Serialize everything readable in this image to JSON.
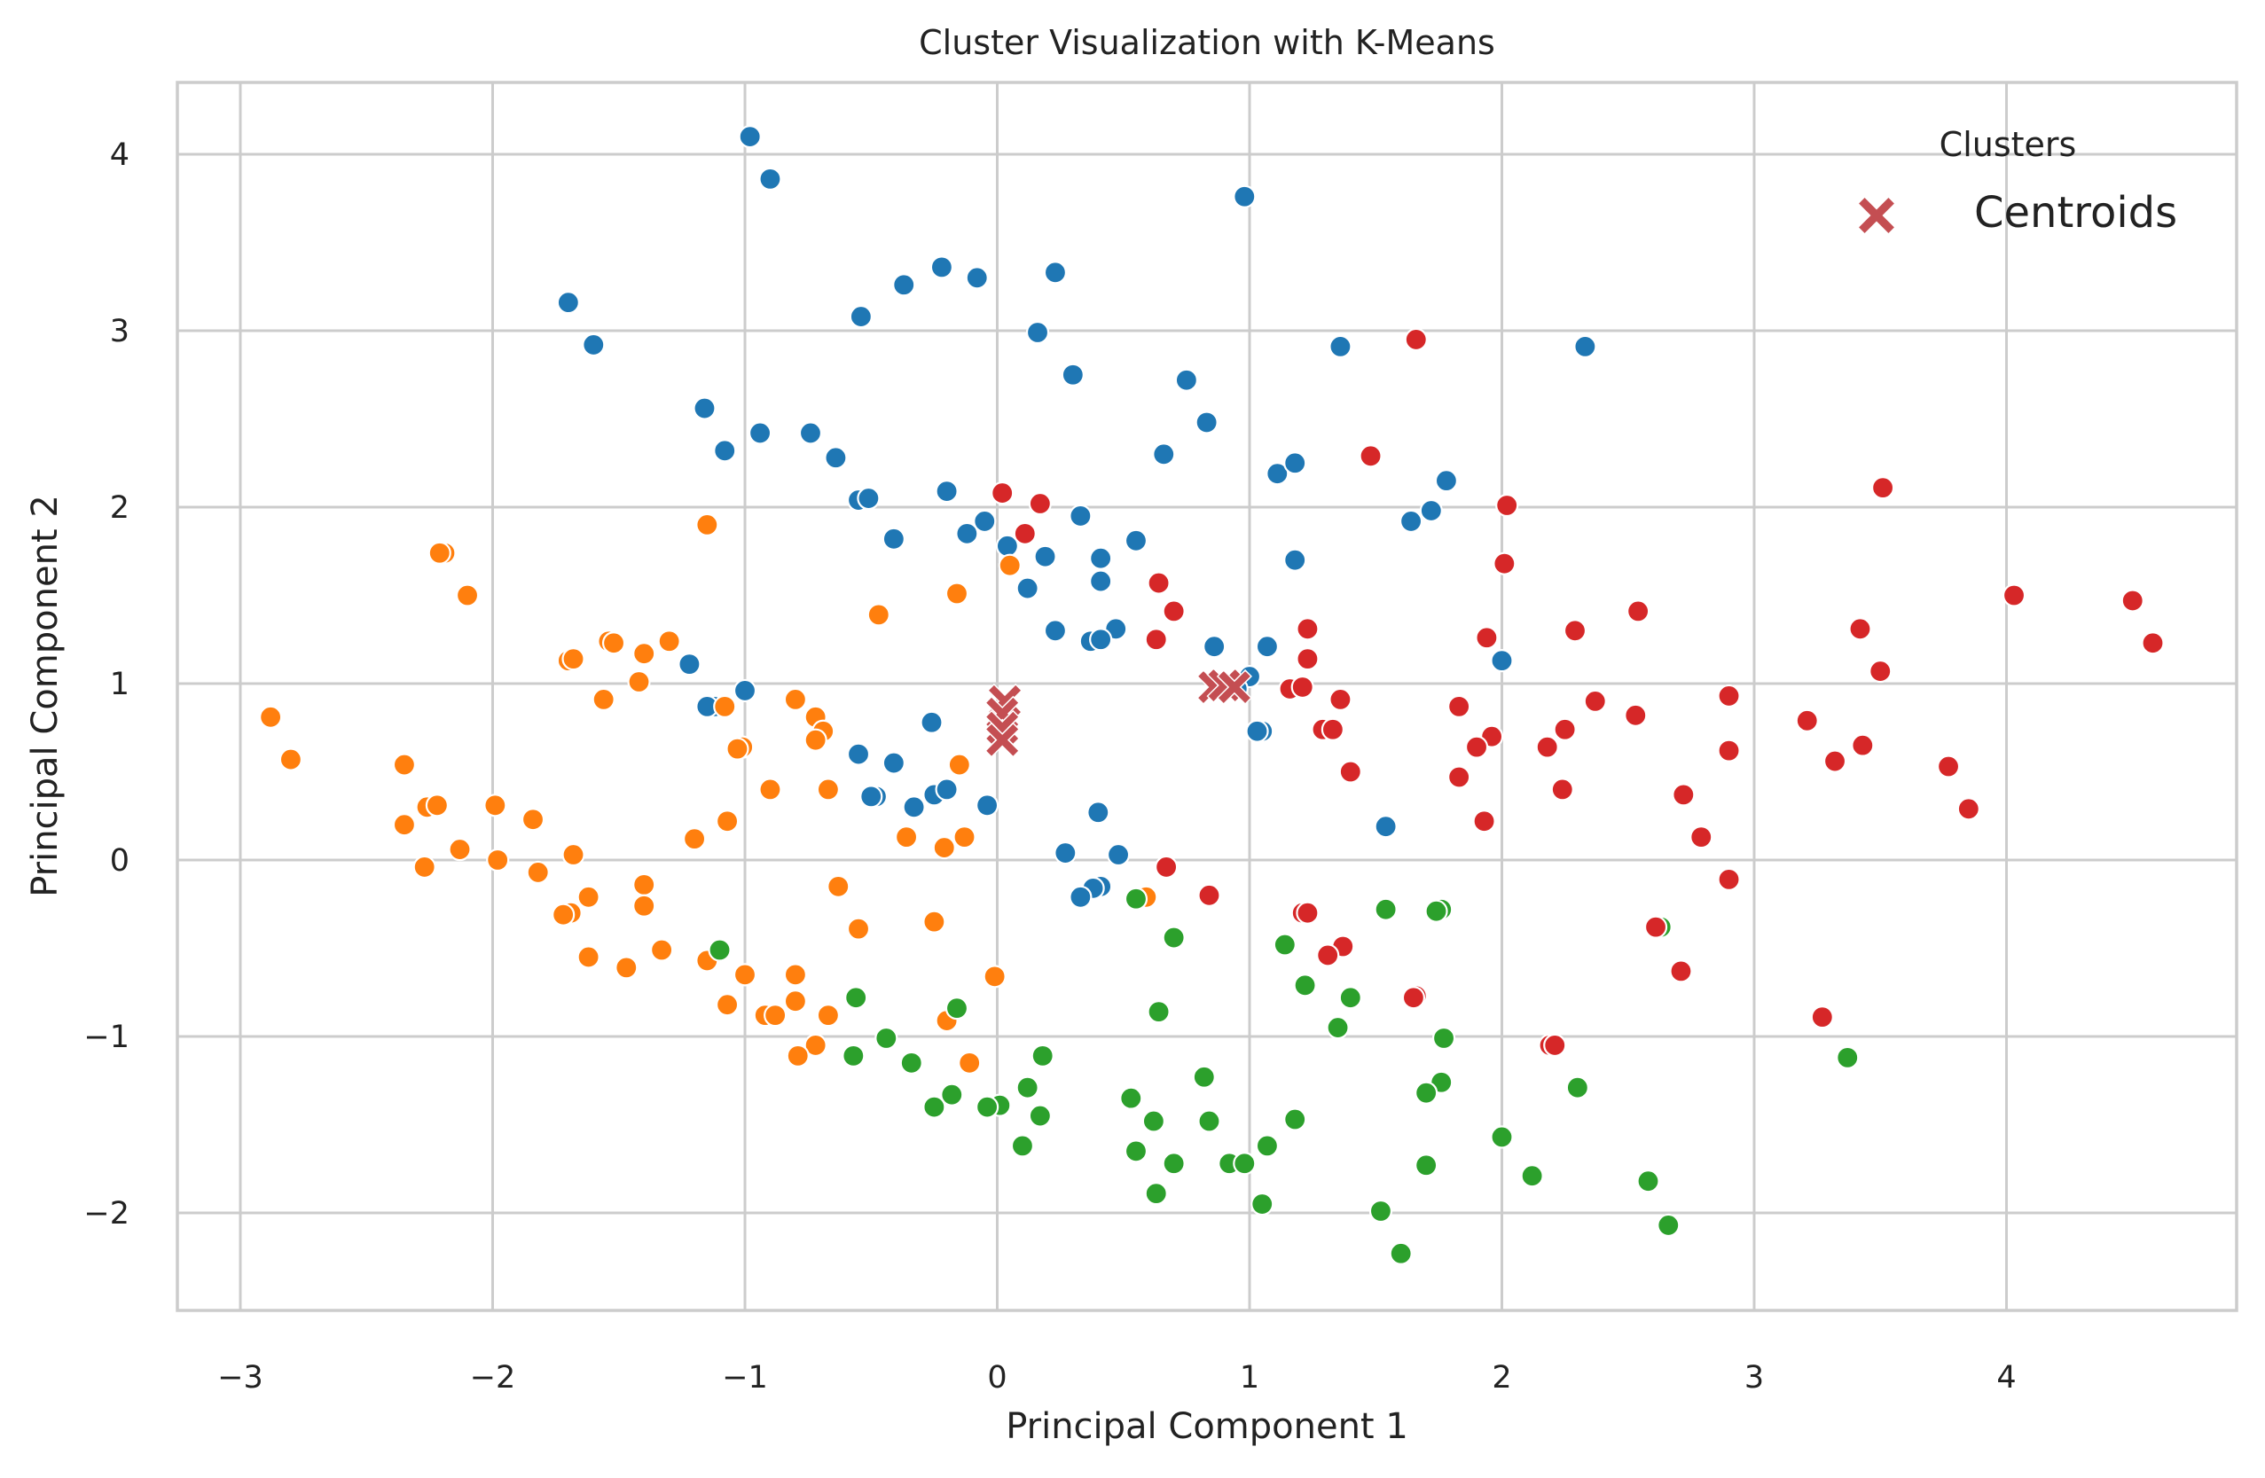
{
  "chart_data": {
    "type": "scatter",
    "title": "Cluster Visualization with K-Means",
    "xlabel": "Principal Component 1",
    "ylabel": "Principal Component 2",
    "xlim": [
      -3.25,
      4.95
    ],
    "ylim": [
      -2.55,
      4.4
    ],
    "xticks": [
      -3,
      -2,
      -1,
      0,
      1,
      2,
      3,
      4
    ],
    "yticks": [
      -2,
      -1,
      0,
      1,
      2,
      3,
      4
    ],
    "xtick_labels": [
      "−3",
      "−2",
      "−1",
      "0",
      "1",
      "2",
      "3",
      "4"
    ],
    "ytick_labels": [
      "−2",
      "−1",
      "0",
      "1",
      "2",
      "3",
      "4"
    ],
    "grid": true,
    "legend": {
      "title": "Clusters",
      "placement": "top-right",
      "entries": [
        "Centroids"
      ]
    },
    "colors": {
      "cluster0": "#1f77b4",
      "cluster1": "#ff7f0e",
      "cluster2": "#2ca02c",
      "cluster3": "#d62728",
      "centroid": "#c44e52"
    },
    "series": [
      {
        "color": "#1f77b4",
        "points": [
          [
            -0.98,
            4.1
          ],
          [
            -0.9,
            3.86
          ],
          [
            0.98,
            3.76
          ],
          [
            -0.22,
            3.36
          ],
          [
            -0.08,
            3.3
          ],
          [
            0.23,
            3.33
          ],
          [
            -0.37,
            3.26
          ],
          [
            -0.54,
            3.08
          ],
          [
            -1.7,
            3.16
          ],
          [
            -1.6,
            2.92
          ],
          [
            0.16,
            2.99
          ],
          [
            1.36,
            2.91
          ],
          [
            2.33,
            2.91
          ],
          [
            0.3,
            2.75
          ],
          [
            0.75,
            2.72
          ],
          [
            -1.16,
            2.56
          ],
          [
            0.83,
            2.48
          ],
          [
            -0.94,
            2.42
          ],
          [
            -0.74,
            2.42
          ],
          [
            -1.08,
            2.32
          ],
          [
            -0.64,
            2.28
          ],
          [
            0.66,
            2.3
          ],
          [
            1.11,
            2.19
          ],
          [
            1.18,
            2.25
          ],
          [
            1.78,
            2.15
          ],
          [
            -0.2,
            2.09
          ],
          [
            -0.55,
            2.04
          ],
          [
            -0.51,
            2.05
          ],
          [
            0.33,
            1.95
          ],
          [
            1.64,
            1.92
          ],
          [
            1.72,
            1.98
          ],
          [
            -0.05,
            1.92
          ],
          [
            -0.12,
            1.85
          ],
          [
            0.55,
            1.81
          ],
          [
            -0.41,
            1.82
          ],
          [
            0.04,
            1.78
          ],
          [
            0.19,
            1.72
          ],
          [
            0.41,
            1.71
          ],
          [
            1.18,
            1.7
          ],
          [
            0.41,
            1.58
          ],
          [
            0.12,
            1.54
          ],
          [
            0.23,
            1.3
          ],
          [
            0.47,
            1.31
          ],
          [
            0.37,
            1.24
          ],
          [
            0.41,
            1.25
          ],
          [
            0.86,
            1.21
          ],
          [
            1.07,
            1.21
          ],
          [
            -1.22,
            1.11
          ],
          [
            2.0,
            1.13
          ],
          [
            1.0,
            1.04
          ],
          [
            -1.0,
            0.96
          ],
          [
            -1.12,
            0.87
          ],
          [
            -1.15,
            0.87
          ],
          [
            1.05,
            0.73
          ],
          [
            1.03,
            0.73
          ],
          [
            0.95,
            0.97
          ],
          [
            -0.26,
            0.78
          ],
          [
            -0.41,
            0.55
          ],
          [
            -0.55,
            0.6
          ],
          [
            -0.48,
            0.36
          ],
          [
            -0.5,
            0.36
          ],
          [
            -0.33,
            0.3
          ],
          [
            -0.25,
            0.37
          ],
          [
            -0.2,
            0.4
          ],
          [
            -0.04,
            0.31
          ],
          [
            0.27,
            0.04
          ],
          [
            0.48,
            0.03
          ],
          [
            0.4,
            0.27
          ],
          [
            1.54,
            0.19
          ],
          [
            0.41,
            -0.15
          ],
          [
            0.38,
            -0.16
          ],
          [
            0.33,
            -0.21
          ]
        ]
      },
      {
        "color": "#ff7f0e",
        "points": [
          [
            -2.19,
            1.74
          ],
          [
            -2.21,
            1.74
          ],
          [
            -2.1,
            1.5
          ],
          [
            -1.15,
            1.9
          ],
          [
            -0.16,
            1.51
          ],
          [
            0.05,
            1.67
          ],
          [
            -0.47,
            1.39
          ],
          [
            -1.3,
            1.24
          ],
          [
            -1.54,
            1.24
          ],
          [
            -1.52,
            1.23
          ],
          [
            -1.4,
            1.17
          ],
          [
            -1.7,
            1.13
          ],
          [
            -1.68,
            1.14
          ],
          [
            -1.42,
            1.01
          ],
          [
            -1.56,
            0.91
          ],
          [
            -1.08,
            0.87
          ],
          [
            -2.88,
            0.81
          ],
          [
            -2.8,
            0.57
          ],
          [
            -2.35,
            0.54
          ],
          [
            -0.8,
            0.91
          ],
          [
            -0.72,
            0.81
          ],
          [
            -0.69,
            0.73
          ],
          [
            -0.72,
            0.68
          ],
          [
            -1.01,
            0.64
          ],
          [
            -1.03,
            0.63
          ],
          [
            -0.15,
            0.54
          ],
          [
            -0.9,
            0.4
          ],
          [
            -0.67,
            0.4
          ],
          [
            -2.26,
            0.3
          ],
          [
            -2.22,
            0.31
          ],
          [
            -1.99,
            0.31
          ],
          [
            -1.84,
            0.23
          ],
          [
            -1.07,
            0.22
          ],
          [
            -2.35,
            0.2
          ],
          [
            -1.2,
            0.12
          ],
          [
            -0.36,
            0.13
          ],
          [
            -0.13,
            0.13
          ],
          [
            -0.21,
            0.07
          ],
          [
            -2.13,
            0.06
          ],
          [
            -1.98,
            0.0
          ],
          [
            -1.68,
            0.03
          ],
          [
            -2.27,
            -0.04
          ],
          [
            -1.82,
            -0.07
          ],
          [
            -1.4,
            -0.14
          ],
          [
            -0.63,
            -0.15
          ],
          [
            0.59,
            -0.21
          ],
          [
            -1.62,
            -0.21
          ],
          [
            -1.4,
            -0.26
          ],
          [
            -1.69,
            -0.3
          ],
          [
            -1.72,
            -0.31
          ],
          [
            -0.25,
            -0.35
          ],
          [
            -0.55,
            -0.39
          ],
          [
            -1.33,
            -0.51
          ],
          [
            -1.62,
            -0.55
          ],
          [
            -1.47,
            -0.61
          ],
          [
            -1.15,
            -0.57
          ],
          [
            -0.01,
            -0.66
          ],
          [
            -0.8,
            -0.65
          ],
          [
            -1.0,
            -0.65
          ],
          [
            -0.8,
            -0.8
          ],
          [
            -1.07,
            -0.82
          ],
          [
            -0.92,
            -0.88
          ],
          [
            -0.88,
            -0.88
          ],
          [
            -0.67,
            -0.88
          ],
          [
            -0.2,
            -0.91
          ],
          [
            -0.72,
            -1.05
          ],
          [
            -0.79,
            -1.11
          ],
          [
            -0.11,
            -1.15
          ]
        ]
      },
      {
        "color": "#2ca02c",
        "points": [
          [
            -1.1,
            -0.51
          ],
          [
            0.7,
            -0.44
          ],
          [
            1.14,
            -0.48
          ],
          [
            1.54,
            -0.28
          ],
          [
            1.76,
            -0.28
          ],
          [
            1.74,
            -0.29
          ],
          [
            0.55,
            -0.22
          ],
          [
            2.63,
            -0.38
          ],
          [
            -0.56,
            -0.78
          ],
          [
            -0.16,
            -0.84
          ],
          [
            1.22,
            -0.71
          ],
          [
            1.4,
            -0.78
          ],
          [
            0.64,
            -0.86
          ],
          [
            1.35,
            -0.95
          ],
          [
            -0.44,
            -1.01
          ],
          [
            1.77,
            -1.01
          ],
          [
            -0.57,
            -1.11
          ],
          [
            -0.34,
            -1.15
          ],
          [
            0.18,
            -1.11
          ],
          [
            3.37,
            -1.12
          ],
          [
            0.82,
            -1.23
          ],
          [
            -0.18,
            -1.33
          ],
          [
            -0.25,
            -1.4
          ],
          [
            0.01,
            -1.39
          ],
          [
            -0.04,
            -1.4
          ],
          [
            0.12,
            -1.29
          ],
          [
            1.76,
            -1.26
          ],
          [
            2.3,
            -1.29
          ],
          [
            1.7,
            -1.32
          ],
          [
            0.53,
            -1.35
          ],
          [
            0.17,
            -1.45
          ],
          [
            0.62,
            -1.48
          ],
          [
            0.84,
            -1.48
          ],
          [
            1.18,
            -1.47
          ],
          [
            2.0,
            -1.57
          ],
          [
            0.1,
            -1.62
          ],
          [
            0.55,
            -1.65
          ],
          [
            1.07,
            -1.62
          ],
          [
            0.7,
            -1.72
          ],
          [
            0.92,
            -1.72
          ],
          [
            0.98,
            -1.72
          ],
          [
            1.7,
            -1.73
          ],
          [
            2.12,
            -1.79
          ],
          [
            2.58,
            -1.82
          ],
          [
            0.63,
            -1.89
          ],
          [
            1.05,
            -1.95
          ],
          [
            1.52,
            -1.99
          ],
          [
            2.66,
            -2.07
          ],
          [
            1.6,
            -2.23
          ]
        ]
      },
      {
        "color": "#d62728",
        "points": [
          [
            1.66,
            2.95
          ],
          [
            3.51,
            2.11
          ],
          [
            1.48,
            2.29
          ],
          [
            0.02,
            2.08
          ],
          [
            0.17,
            2.02
          ],
          [
            2.02,
            2.01
          ],
          [
            0.11,
            1.85
          ],
          [
            2.01,
            1.68
          ],
          [
            0.64,
            1.57
          ],
          [
            4.03,
            1.5
          ],
          [
            4.5,
            1.47
          ],
          [
            0.7,
            1.41
          ],
          [
            2.54,
            1.41
          ],
          [
            4.58,
            1.23
          ],
          [
            1.23,
            1.31
          ],
          [
            2.29,
            1.3
          ],
          [
            3.42,
            1.31
          ],
          [
            0.63,
            1.25
          ],
          [
            1.94,
            1.26
          ],
          [
            1.23,
            1.14
          ],
          [
            3.5,
            1.07
          ],
          [
            1.16,
            0.97
          ],
          [
            1.21,
            0.98
          ],
          [
            1.36,
            0.91
          ],
          [
            2.37,
            0.9
          ],
          [
            2.9,
            0.93
          ],
          [
            1.83,
            0.87
          ],
          [
            2.53,
            0.82
          ],
          [
            3.21,
            0.79
          ],
          [
            1.29,
            0.74
          ],
          [
            1.33,
            0.74
          ],
          [
            2.25,
            0.74
          ],
          [
            1.96,
            0.7
          ],
          [
            1.9,
            0.64
          ],
          [
            2.18,
            0.64
          ],
          [
            2.9,
            0.62
          ],
          [
            3.43,
            0.65
          ],
          [
            3.32,
            0.56
          ],
          [
            3.77,
            0.53
          ],
          [
            1.4,
            0.5
          ],
          [
            1.83,
            0.47
          ],
          [
            2.24,
            0.4
          ],
          [
            2.72,
            0.37
          ],
          [
            3.85,
            0.29
          ],
          [
            1.93,
            0.22
          ],
          [
            2.79,
            0.13
          ],
          [
            0.67,
            -0.04
          ],
          [
            2.9,
            -0.11
          ],
          [
            0.84,
            -0.2
          ],
          [
            1.21,
            -0.3
          ],
          [
            1.23,
            -0.3
          ],
          [
            2.61,
            -0.38
          ],
          [
            1.37,
            -0.49
          ],
          [
            1.31,
            -0.54
          ],
          [
            2.71,
            -0.63
          ],
          [
            1.66,
            -0.77
          ],
          [
            1.65,
            -0.78
          ],
          [
            3.27,
            -0.89
          ],
          [
            2.19,
            -1.05
          ],
          [
            2.21,
            -1.05
          ]
        ]
      }
    ],
    "centroids": [
      [
        0.03,
        0.9
      ],
      [
        0.02,
        0.83
      ],
      [
        0.02,
        0.75
      ],
      [
        0.02,
        0.68
      ],
      [
        0.86,
        0.98
      ],
      [
        0.9,
        0.99
      ],
      [
        0.94,
        0.98
      ]
    ]
  }
}
